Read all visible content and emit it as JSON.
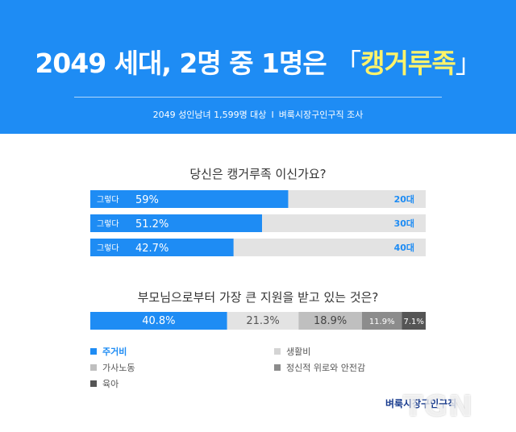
{
  "header": {
    "title_prefix": "2049 세대, 2명 중 1명은",
    "title_open_bracket": "「",
    "title_highlight": "캥거루족",
    "title_close_bracket": "」",
    "survey_sample": "2049 성인남녀 1,599명 대상",
    "separator": "I",
    "survey_source": "벼룩시장구인구직 조사"
  },
  "colors": {
    "header_bg": "#1e8cf4",
    "accent": "#1e8cf4",
    "highlight": "#fff36a",
    "track": "#e3e3e3"
  },
  "chart_data": [
    {
      "type": "bar",
      "orientation": "horizontal",
      "title": "당신은 캥거루족 이신가요?",
      "bar_label": "그렇다",
      "categories": [
        "20대",
        "30대",
        "40대"
      ],
      "values": [
        59,
        51.2,
        42.7
      ],
      "value_labels": [
        "59%",
        "51.2%",
        "42.7%"
      ],
      "xlim": [
        0,
        100
      ]
    },
    {
      "type": "bar",
      "orientation": "stacked-horizontal",
      "title": "부모님으로부터 가장 큰 지원을 받고 있는 것은?",
      "series": [
        {
          "name": "주거비",
          "value": 40.8,
          "label": "40.8%",
          "color": "#1e8cf4",
          "text_color": "#ffffff"
        },
        {
          "name": "생활비",
          "value": 21.3,
          "label": "21.3%",
          "color": "#e3e3e3",
          "text_color": "#555555"
        },
        {
          "name": "가사노동",
          "value": 18.9,
          "label": "18.9%",
          "color": "#bfbfbf",
          "text_color": "#444444"
        },
        {
          "name": "정신적 위로와 안전감",
          "value": 11.9,
          "label": "11.9%",
          "color": "#8c8c8c",
          "text_color": "#ffffff"
        },
        {
          "name": "육아",
          "value": 7.1,
          "label": "7.1%",
          "color": "#555555",
          "text_color": "#ffffff"
        }
      ],
      "legend_placement": "bottom"
    }
  ],
  "logo": {
    "text": "벼룩시장구인구직"
  },
  "watermark": {
    "text": "TGN"
  }
}
